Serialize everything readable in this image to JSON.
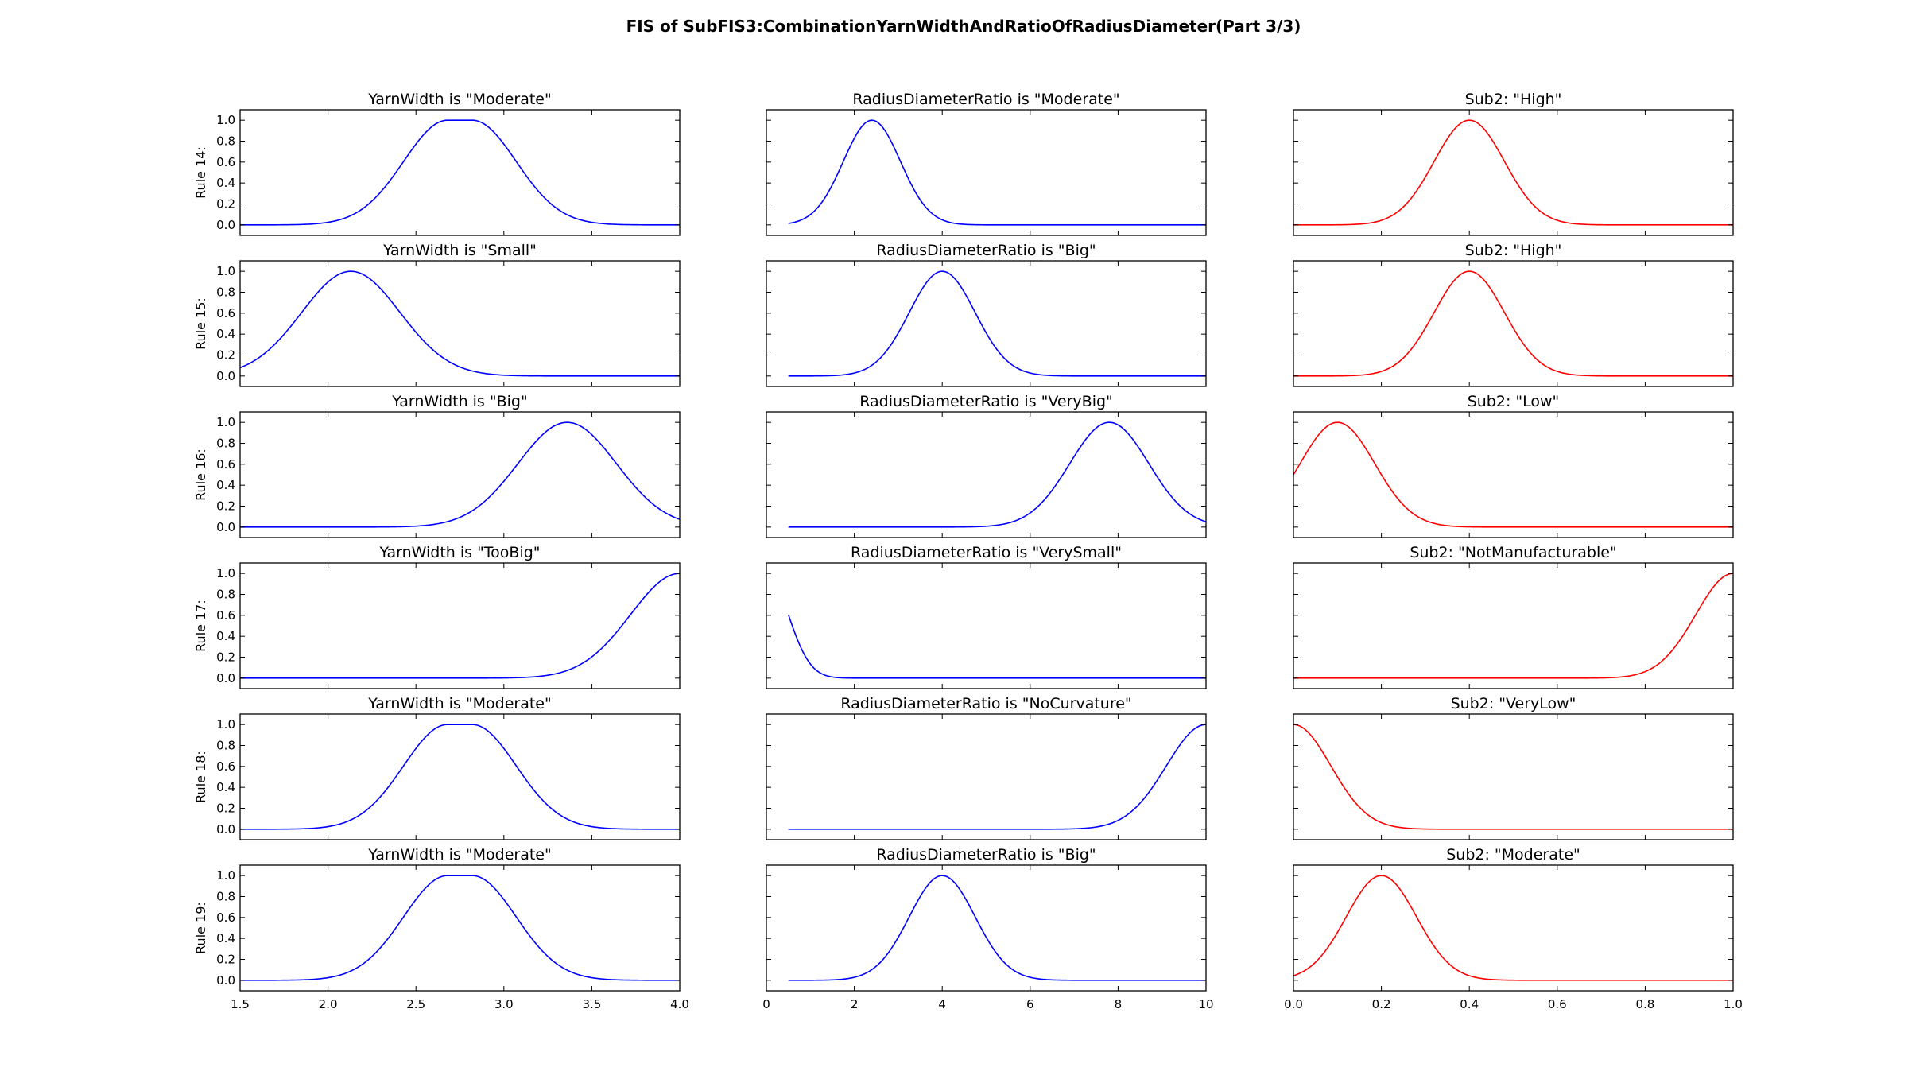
{
  "title": "FIS of SubFIS3:CombinationYarnWidthAndRatioOfRadiusDiameter(Part 3/3)",
  "colors": {
    "input": "#0000ff",
    "output": "#ff0000"
  },
  "chart_data": {
    "type": "line",
    "columns": [
      {
        "variable": "YarnWidth",
        "xlim": [
          1.5,
          4.0
        ],
        "xticks": [
          "1.5",
          "2.0",
          "2.5",
          "3.0",
          "3.5",
          "4.0"
        ],
        "color": "#0000ff"
      },
      {
        "variable": "RadiusDiameterRatio",
        "xlim": [
          0,
          10
        ],
        "xticks": [
          "0",
          "2",
          "4",
          "6",
          "8",
          "10"
        ],
        "color": "#0000ff"
      },
      {
        "variable": "Sub2",
        "xlim": [
          0.0,
          1.0
        ],
        "xticks": [
          "0.0",
          "0.2",
          "0.4",
          "0.6",
          "0.8",
          "1.0"
        ],
        "color": "#ff0000"
      }
    ],
    "ylim": [
      -0.1,
      1.1
    ],
    "yticks": [
      "0.0",
      "0.2",
      "0.4",
      "0.6",
      "0.8",
      "1.0"
    ],
    "rows": [
      {
        "label": "Rule 14:",
        "panels": [
          {
            "title": "YarnWidth is \"Moderate\"",
            "mf": {
              "kind": "gauss2",
              "c1": 2.68,
              "s1": 0.25,
              "c2": 2.82,
              "s2": 0.25
            },
            "x_range": [
              1.5,
              4.0
            ]
          },
          {
            "title": "RadiusDiameterRatio is \"Moderate\"",
            "mf": {
              "kind": "gauss",
              "c": 2.4,
              "s": 0.65
            },
            "x_range": [
              0.5,
              10
            ]
          },
          {
            "title": "Sub2: \"High\"",
            "mf": {
              "kind": "gauss",
              "c": 0.4,
              "s": 0.08
            },
            "x_range": [
              0,
              1
            ]
          }
        ]
      },
      {
        "label": "Rule 15:",
        "panels": [
          {
            "title": "YarnWidth is \"Small\"",
            "mf": {
              "kind": "gauss",
              "c": 2.13,
              "s": 0.28
            },
            "x_range": [
              1.5,
              4.0
            ]
          },
          {
            "title": "RadiusDiameterRatio is \"Big\"",
            "mf": {
              "kind": "gauss",
              "c": 4.0,
              "s": 0.75
            },
            "x_range": [
              0.5,
              10
            ]
          },
          {
            "title": "Sub2: \"High\"",
            "mf": {
              "kind": "gauss",
              "c": 0.4,
              "s": 0.08
            },
            "x_range": [
              0,
              1
            ]
          }
        ]
      },
      {
        "label": "Rule 16:",
        "panels": [
          {
            "title": "YarnWidth is \"Big\"",
            "mf": {
              "kind": "gauss",
              "c": 3.36,
              "s": 0.28
            },
            "x_range": [
              1.5,
              4.0
            ]
          },
          {
            "title": "RadiusDiameterRatio is \"VeryBig\"",
            "mf": {
              "kind": "gauss",
              "c": 7.8,
              "s": 0.9
            },
            "x_range": [
              0.5,
              10
            ]
          },
          {
            "title": "Sub2: \"Low\"",
            "mf": {
              "kind": "gauss",
              "c": 0.1,
              "s": 0.085
            },
            "x_range": [
              0,
              1
            ]
          }
        ]
      },
      {
        "label": "Rule 17:",
        "panels": [
          {
            "title": "YarnWidth is \"TooBig\"",
            "mf": {
              "kind": "gauss",
              "c": 4.0,
              "s": 0.28
            },
            "x_range": [
              1.5,
              4.0
            ]
          },
          {
            "title": "RadiusDiameterRatio is \"VerySmall\"",
            "mf": {
              "kind": "gauss",
              "c": 0.0,
              "s": 0.5
            },
            "x_range": [
              0.5,
              10
            ]
          },
          {
            "title": "Sub2: \"NotManufacturable\"",
            "mf": {
              "kind": "gauss",
              "c": 1.0,
              "s": 0.085
            },
            "x_range": [
              0,
              1
            ]
          }
        ]
      },
      {
        "label": "Rule 18:",
        "panels": [
          {
            "title": "YarnWidth is \"Moderate\"",
            "mf": {
              "kind": "gauss2",
              "c1": 2.68,
              "s1": 0.25,
              "c2": 2.82,
              "s2": 0.25
            },
            "x_range": [
              1.5,
              4.0
            ]
          },
          {
            "title": "RadiusDiameterRatio is \"NoCurvature\"",
            "mf": {
              "kind": "gauss",
              "c": 10.0,
              "s": 0.9
            },
            "x_range": [
              0.5,
              10
            ]
          },
          {
            "title": "Sub2: \"VeryLow\"",
            "mf": {
              "kind": "gauss",
              "c": 0.0,
              "s": 0.085
            },
            "x_range": [
              0,
              1
            ]
          }
        ]
      },
      {
        "label": "Rule 19:",
        "panels": [
          {
            "title": "YarnWidth is \"Moderate\"",
            "mf": {
              "kind": "gauss2",
              "c1": 2.68,
              "s1": 0.25,
              "c2": 2.82,
              "s2": 0.25
            },
            "x_range": [
              1.5,
              4.0
            ]
          },
          {
            "title": "RadiusDiameterRatio is \"Big\"",
            "mf": {
              "kind": "gauss",
              "c": 4.0,
              "s": 0.75
            },
            "x_range": [
              0.5,
              10
            ]
          },
          {
            "title": "Sub2: \"Moderate\"",
            "mf": {
              "kind": "gauss",
              "c": 0.2,
              "s": 0.08
            },
            "x_range": [
              0,
              1
            ]
          }
        ]
      }
    ]
  }
}
